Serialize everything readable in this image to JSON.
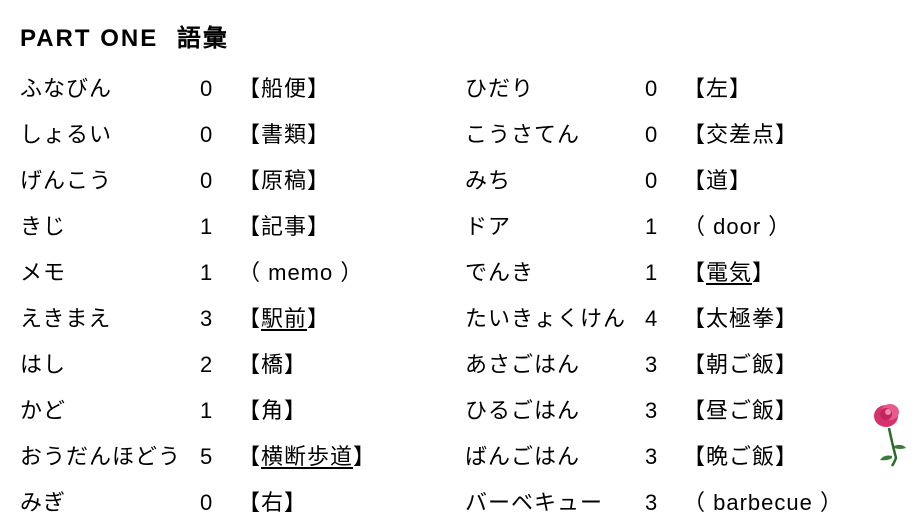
{
  "header": {
    "part": "PART  ONE",
    "subtitle": "語彙"
  },
  "left": [
    {
      "reading": "ふなびん",
      "accent": "0",
      "kanji": "【船便】",
      "underline": false
    },
    {
      "reading": "しょるい",
      "accent": "0",
      "kanji": "【書類】",
      "underline": false
    },
    {
      "reading": "げんこう",
      "accent": "0",
      "kanji": "【原稿】",
      "underline": false
    },
    {
      "reading": "きじ",
      "accent": "1",
      "kanji": "【記事】",
      "underline": false
    },
    {
      "reading": "メモ",
      "accent": "1",
      "kanji": "（ memo ）",
      "underline": false
    },
    {
      "reading": "えきまえ",
      "accent": "3",
      "kanji": "【駅前】",
      "underline": true
    },
    {
      "reading": "はし",
      "accent": "2",
      "kanji": "【橋】",
      "underline": false
    },
    {
      "reading": "かど",
      "accent": "1",
      "kanji": "【角】",
      "underline": false
    },
    {
      "reading": "おうだんほどう",
      "accent": "5",
      "kanji": "【横断歩道】",
      "underline": true
    },
    {
      "reading": "みぎ",
      "accent": "0",
      "kanji": "【右】",
      "underline": false
    }
  ],
  "right": [
    {
      "reading": "ひだり",
      "accent": "0",
      "kanji": "【左】",
      "underline": false
    },
    {
      "reading": "こうさてん",
      "accent": "0",
      "kanji": "【交差点】",
      "underline": false
    },
    {
      "reading": "みち",
      "accent": "0",
      "kanji": "【道】",
      "underline": false
    },
    {
      "reading": "ドア",
      "accent": "1",
      "kanji": "（ door ）",
      "underline": false
    },
    {
      "reading": "でんき",
      "accent": "1",
      "kanji": "【電気】",
      "underline": true
    },
    {
      "reading": "たいきょくけん",
      "accent": "4",
      "kanji": "【太極拳】",
      "underline": false
    },
    {
      "reading": "あさごはん",
      "accent": "3",
      "kanji": "【朝ご飯】",
      "underline": false
    },
    {
      "reading": "ひるごはん",
      "accent": "3",
      "kanji": "【昼ご飯】",
      "underline": false
    },
    {
      "reading": "ばんごはん",
      "accent": "3",
      "kanji": "【晩ご飯】",
      "underline": false
    },
    {
      "reading": "バーベキュー",
      "accent": "3",
      "kanji": "（ barbecue ）",
      "underline": false
    }
  ]
}
